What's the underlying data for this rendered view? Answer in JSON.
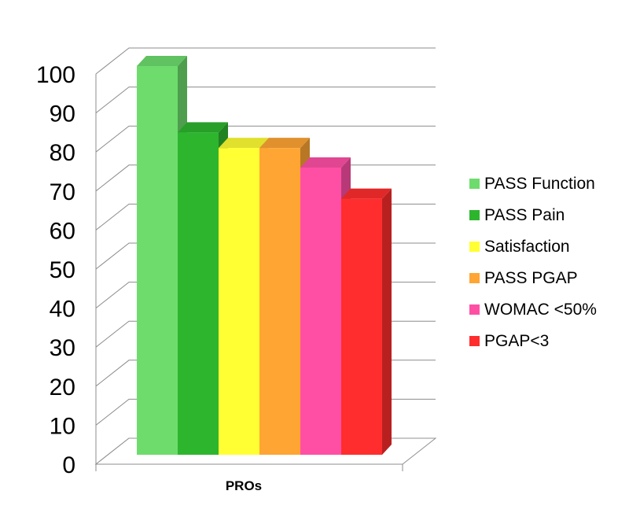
{
  "chart_data": {
    "type": "bar",
    "xlabel": "PROs",
    "ylim": [
      0,
      100
    ],
    "yticks": [
      "0",
      "10",
      "20",
      "30",
      "40",
      "50",
      "60",
      "70",
      "80",
      "90",
      "100"
    ],
    "grid": true,
    "legend_position": "right",
    "series": [
      {
        "name": "PASS Function",
        "value": 100,
        "color": "#6ddc6d"
      },
      {
        "name": "PASS Pain",
        "value": 83,
        "color": "#2eb52e"
      },
      {
        "name": "Satisfaction",
        "value": 79,
        "color": "#ffff33"
      },
      {
        "name": "PASS PGAP",
        "value": 79,
        "color": "#ffa533"
      },
      {
        "name": "WOMAC <50%",
        "value": 74,
        "color": "#ff4fa5"
      },
      {
        "name": "PGAP<3",
        "value": 66,
        "color": "#ff2d2d"
      }
    ]
  }
}
